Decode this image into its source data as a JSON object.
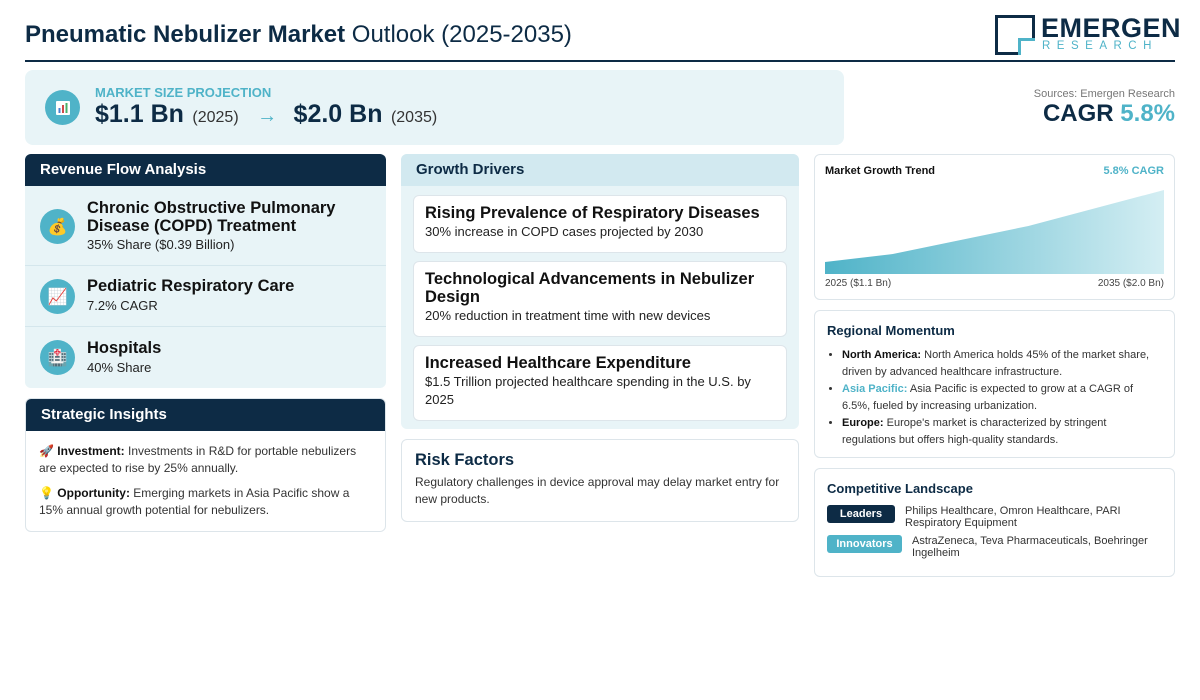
{
  "header": {
    "title_bold": "Pneumatic Nebulizer Market",
    "title_rest": "Outlook (2025-2035)",
    "logo_name": "EMERGEN",
    "logo_sub": "RESEARCH"
  },
  "projection": {
    "icon": "bar-chart-icon",
    "label": "MARKET SIZE PROJECTION",
    "start_value": "$1.1 Bn",
    "start_year": "(2025)",
    "arrow": "→",
    "end_value": "$2.0 Bn",
    "end_year": "(2035)"
  },
  "sources": "Sources: Emergen Research",
  "cagr": {
    "label": "CAGR",
    "value": "5.8%"
  },
  "revenue": {
    "title": "Revenue Flow Analysis",
    "items": [
      {
        "icon": "money-bag-icon",
        "title": "Chronic Obstructive Pulmonary Disease (COPD) Treatment",
        "sub": "35% Share ($0.39 Billion)"
      },
      {
        "icon": "chart-up-icon",
        "title": "Pediatric Respiratory Care",
        "sub": "7.2% CAGR"
      },
      {
        "icon": "hospital-icon",
        "title": "Hospitals",
        "sub": "40% Share"
      }
    ]
  },
  "insights": {
    "title": "Strategic Insights",
    "items": [
      {
        "icon": "🚀",
        "label": "Investment:",
        "text": " Investments in R&D for portable nebulizers are expected to rise by 25% annually."
      },
      {
        "icon": "💡",
        "label": "Opportunity:",
        "text": " Emerging markets in Asia Pacific show a 15% annual growth potential for nebulizers."
      }
    ]
  },
  "drivers": {
    "title": "Growth Drivers",
    "items": [
      {
        "title": "Rising Prevalence of Respiratory Diseases",
        "text": "30% increase in COPD cases projected by 2030"
      },
      {
        "title": "Technological Advancements in Nebulizer Design",
        "text": "20% reduction in treatment time with new devices"
      },
      {
        "title": "Increased Healthcare Expenditure",
        "text": "$1.5 Trillion projected healthcare spending in the U.S. by 2025"
      }
    ]
  },
  "risk": {
    "title": "Risk Factors",
    "text": "Regulatory challenges in device approval may delay market entry for new products."
  },
  "trend": {
    "title": "Market Growth Trend",
    "cagr_label": "5.8% CAGR",
    "start_label": "2025 ($1.1 Bn)",
    "end_label": "2035 ($2.0 Bn)",
    "colors": {
      "fill_top": "#d4eef3",
      "fill_bottom": "#4fb3c8"
    }
  },
  "chart_data": {
    "type": "area",
    "x": [
      2025,
      2027,
      2031,
      2035
    ],
    "values": [
      1.1,
      1.2,
      1.55,
      2.0
    ],
    "xlim": [
      2025,
      2035
    ],
    "ylim": [
      0.95,
      2.0
    ],
    "title": "Market Growth Trend",
    "xlabel": "",
    "ylabel": ""
  },
  "regional": {
    "title": "Regional Momentum",
    "items": [
      {
        "label": "North America:",
        "text": " North America holds 45% of the market share, driven by advanced healthcare infrastructure.",
        "accent": false
      },
      {
        "label": "Asia Pacific:",
        "text": " Asia Pacific is expected to grow at a CAGR of 6.5%, fueled by increasing urbanization.",
        "accent": true
      },
      {
        "label": "Europe:",
        "text": " Europe's market is characterized by stringent regulations but offers high-quality standards.",
        "accent": false
      }
    ]
  },
  "competitive": {
    "title": "Competitive Landscape",
    "rows": [
      {
        "badge": "Leaders",
        "color": "#0d2b45",
        "text": "Philips Healthcare, Omron Healthcare, PARI Respiratory Equipment"
      },
      {
        "badge": "Innovators",
        "color": "#4fb3c8",
        "text": "AstraZeneca, Teva Pharmaceuticals, Boehringer Ingelheim"
      }
    ]
  },
  "colors": {
    "primary": "#0d2b45",
    "accent": "#4fb3c8",
    "panel": "#e8f4f7"
  }
}
